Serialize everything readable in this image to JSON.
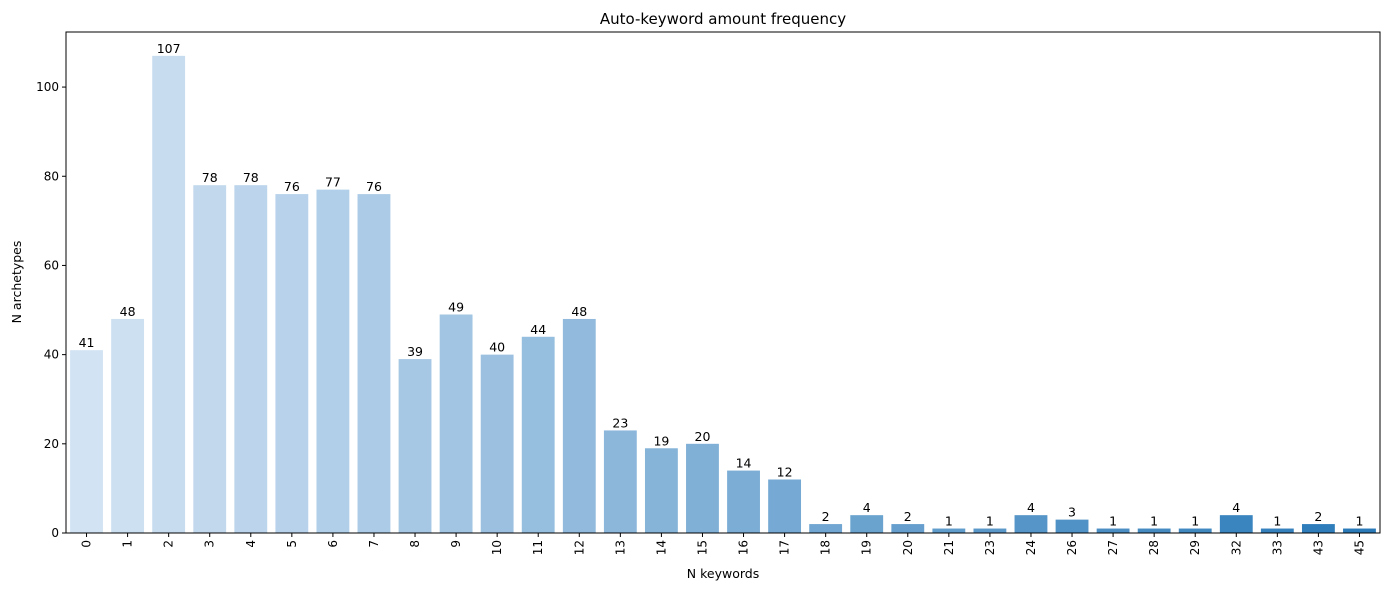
{
  "chart_data": {
    "type": "bar",
    "title": "Auto-keyword amount frequency",
    "xlabel": "N keywords",
    "ylabel": "N archetypes",
    "categories": [
      "0",
      "1",
      "2",
      "3",
      "4",
      "5",
      "6",
      "7",
      "8",
      "9",
      "10",
      "11",
      "12",
      "13",
      "14",
      "15",
      "16",
      "17",
      "18",
      "19",
      "20",
      "21",
      "23",
      "24",
      "26",
      "27",
      "28",
      "29",
      "32",
      "33",
      "43",
      "45"
    ],
    "values": [
      41,
      48,
      107,
      78,
      78,
      76,
      77,
      76,
      39,
      49,
      40,
      44,
      48,
      23,
      19,
      20,
      14,
      12,
      2,
      4,
      2,
      1,
      1,
      4,
      3,
      1,
      1,
      1,
      4,
      1,
      2,
      1
    ],
    "ylim": [
      0,
      112.35
    ],
    "yticks": [
      0,
      20,
      40,
      60,
      80,
      100
    ],
    "x_tick_rotation": 90,
    "bar_labels": true,
    "grid": false,
    "legend": "none",
    "palette": "blues, light to dark from left to right",
    "colors": {
      "palette_start": "#d2e3f3",
      "palette_end": "#2a7ab9",
      "axis": "#000000",
      "text": "#000000",
      "background": "#ffffff"
    }
  }
}
